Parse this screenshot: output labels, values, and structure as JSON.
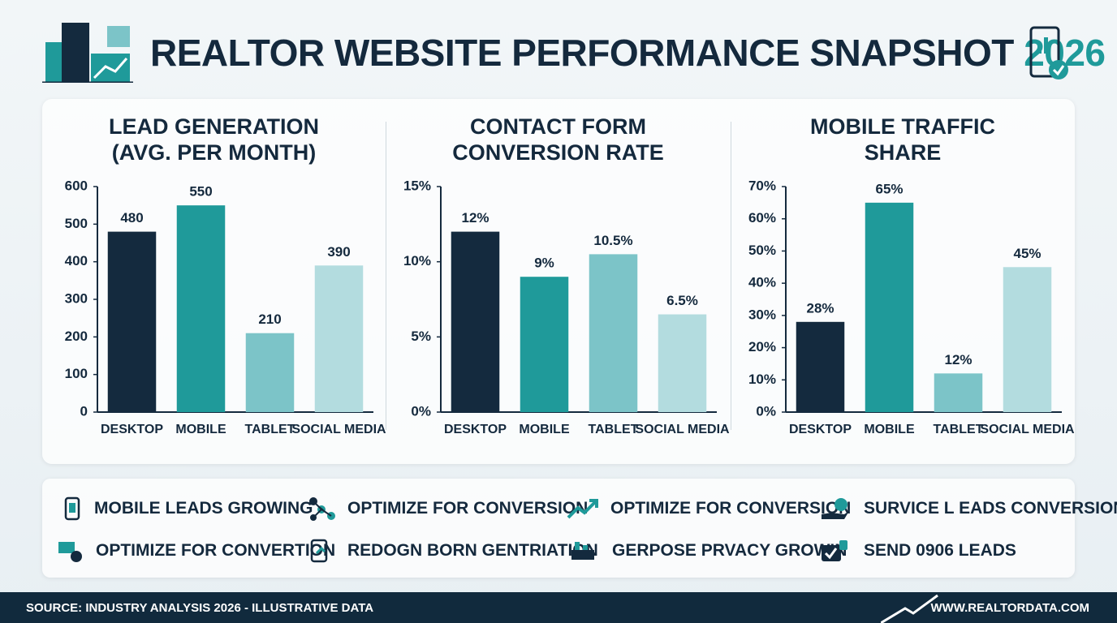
{
  "header": {
    "title": "REALTOR WEBSITE PERFORMANCE SNAPSHOT",
    "year": "2026"
  },
  "chart_data": [
    {
      "type": "bar",
      "title": "LEAD GENERATION",
      "subtitle": "(AVG. PER MONTH)",
      "categories": [
        "DESKTOP",
        "MOBILE",
        "TABLET",
        "SOCIAL MEDIA"
      ],
      "values": [
        480,
        550,
        210,
        390
      ],
      "colors": [
        "#142a3e",
        "#1f9a9a",
        "#7cc4c8",
        "#b3dcdf"
      ],
      "ylim": [
        0,
        600
      ],
      "yticks": [
        0,
        100,
        200,
        300,
        400,
        500,
        600
      ]
    },
    {
      "type": "bar",
      "title": "CONTACT FORM CONVERSION RATE",
      "categories": [
        "DESKTOP",
        "MOBILE",
        "TABLET",
        "SOCIAL MEDIA"
      ],
      "values": [
        12,
        9,
        10.5,
        6.5
      ],
      "value_labels": [
        "12%",
        "9%",
        "10.5%",
        "6.5%"
      ],
      "colors": [
        "#142a3e",
        "#1f9a9a",
        "#7cc4c8",
        "#b3dcdf"
      ],
      "ylim": [
        0,
        15
      ],
      "yticks": [
        {
          "value": 0,
          "label": "0%"
        },
        {
          "value": 5,
          "label": "5%"
        },
        {
          "value": 10,
          "label": "10%"
        },
        {
          "value": 15,
          "label": "15%"
        }
      ]
    },
    {
      "type": "bar",
      "title": "MOBILE TRAFFIC SHARE",
      "categories": [
        "DESKTOP",
        "MOBILE",
        "TABLET",
        "SOCIAL MEDIA"
      ],
      "values": [
        28,
        65,
        12,
        45
      ],
      "value_labels": [
        "28%",
        "65%",
        "12%",
        "45%"
      ],
      "colors": [
        "#142a3e",
        "#1f9a9a",
        "#7cc4c8",
        "#b3dcdf"
      ],
      "ylim": [
        0,
        70
      ],
      "yticks": [
        {
          "value": 0,
          "label": "0%"
        },
        {
          "value": 10,
          "label": "10%"
        },
        {
          "value": 20,
          "label": "20%"
        },
        {
          "value": 30,
          "label": "30%"
        },
        {
          "value": 40,
          "label": "40%"
        },
        {
          "value": 50,
          "label": "50%"
        },
        {
          "value": 60,
          "label": "60%"
        },
        {
          "value": 70,
          "label": "70%"
        }
      ]
    }
  ],
  "tips": [
    "MOBILE LEADS GROWING",
    "OPTIMIZE FOR CONVERSION",
    "OPTIMIZE FOR CONVERSION",
    "SURVICE L EADS CONVERSION",
    "OPTIMIZE FOR CONVERTION",
    "REDOGN BORN GENTRIATION",
    "GERPOSE PRVACY GROWIN",
    "SEND 0906 LEADS"
  ],
  "footer": {
    "source": "SOURCE: INDUSTRY ANALYSIS 2026 - ILLUSTRATIVE DATA",
    "website": "WWW.REALTORDATA.COM"
  }
}
